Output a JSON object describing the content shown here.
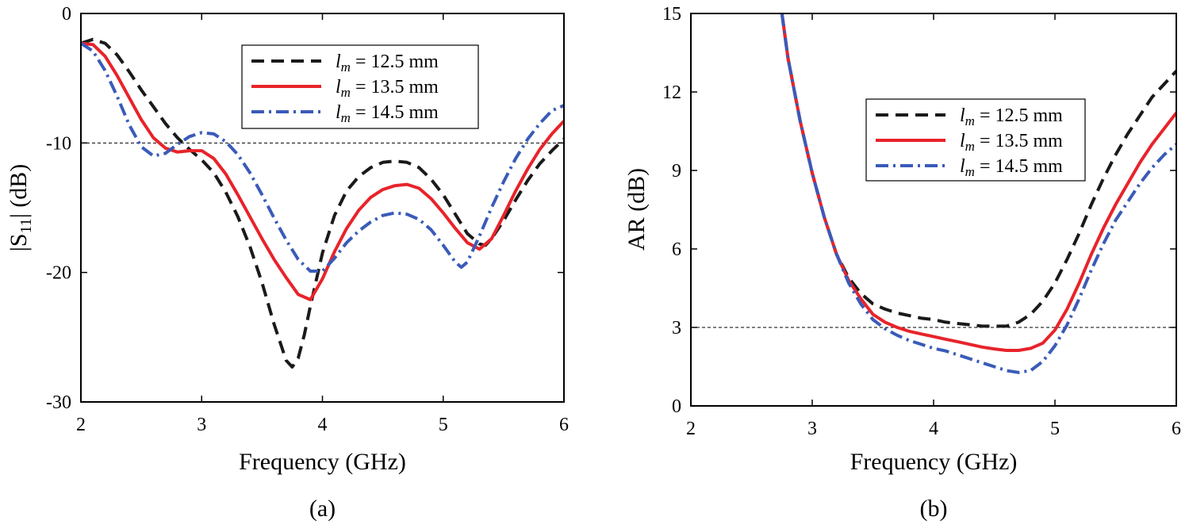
{
  "chart_data": [
    {
      "type": "line",
      "panel_label": "(a)",
      "xlabel": "Frequency (GHz)",
      "ylabel": "|S11| (dB)",
      "ylabel_main": "|S",
      "ylabel_sub": "11",
      "ylabel_tail": "| (dB)",
      "xlim": [
        2,
        6
      ],
      "ylim": [
        -30,
        0
      ],
      "xticks": [
        2,
        3,
        4,
        5,
        6
      ],
      "yticks": [
        0,
        -10,
        -20,
        -30
      ],
      "xtick_labels": [
        "2",
        "3",
        "4",
        "5",
        "6"
      ],
      "ytick_labels": [
        "0",
        "-10",
        "-20",
        "-30"
      ],
      "reference_line": -10,
      "legend_position": "top-right",
      "series": [
        {
          "name": "l_m = 12.5 mm",
          "legend_var": "l",
          "legend_sub": "m",
          "legend_rest": " = 12.5 mm",
          "color": "#1a1a1a",
          "dash": "dashed",
          "x": [
            2.0,
            2.1,
            2.2,
            2.3,
            2.4,
            2.5,
            2.6,
            2.7,
            2.8,
            2.9,
            3.0,
            3.1,
            3.2,
            3.3,
            3.4,
            3.5,
            3.6,
            3.7,
            3.75,
            3.8,
            3.85,
            3.9,
            4.0,
            4.1,
            4.2,
            4.3,
            4.4,
            4.5,
            4.6,
            4.7,
            4.8,
            4.9,
            5.0,
            5.1,
            5.2,
            5.3,
            5.35,
            5.4,
            5.5,
            5.6,
            5.7,
            5.8,
            5.9,
            6.0
          ],
          "y": [
            -2.3,
            -2.0,
            -2.3,
            -3.2,
            -4.5,
            -5.9,
            -7.2,
            -8.5,
            -9.6,
            -10.5,
            -11.3,
            -12.3,
            -13.8,
            -15.7,
            -18.0,
            -20.8,
            -24.0,
            -26.8,
            -27.3,
            -26.6,
            -24.8,
            -22.6,
            -18.5,
            -15.6,
            -13.7,
            -12.6,
            -11.9,
            -11.5,
            -11.4,
            -11.5,
            -11.9,
            -12.8,
            -14.0,
            -15.5,
            -17.0,
            -17.8,
            -17.9,
            -17.4,
            -16.0,
            -14.4,
            -12.9,
            -11.6,
            -10.6,
            -9.7
          ]
        },
        {
          "name": "l_m = 13.5 mm",
          "legend_var": "l",
          "legend_sub": "m",
          "legend_rest": " = 13.5 mm",
          "color": "#e8232a",
          "dash": "solid",
          "x": [
            2.0,
            2.1,
            2.2,
            2.3,
            2.4,
            2.5,
            2.6,
            2.7,
            2.8,
            2.9,
            3.0,
            3.1,
            3.2,
            3.3,
            3.4,
            3.5,
            3.6,
            3.7,
            3.8,
            3.9,
            4.0,
            4.1,
            4.2,
            4.3,
            4.4,
            4.5,
            4.6,
            4.7,
            4.8,
            4.9,
            5.0,
            5.1,
            5.2,
            5.3,
            5.4,
            5.5,
            5.6,
            5.7,
            5.8,
            5.9,
            6.0
          ],
          "y": [
            -2.3,
            -2.4,
            -3.3,
            -4.8,
            -6.5,
            -8.2,
            -9.6,
            -10.4,
            -10.7,
            -10.6,
            -10.6,
            -11.2,
            -12.4,
            -14.0,
            -15.7,
            -17.4,
            -19.0,
            -20.4,
            -21.7,
            -22.1,
            -20.5,
            -18.4,
            -16.6,
            -15.2,
            -14.2,
            -13.6,
            -13.3,
            -13.2,
            -13.5,
            -14.3,
            -15.4,
            -16.6,
            -17.7,
            -18.2,
            -17.4,
            -15.6,
            -13.7,
            -12.0,
            -10.5,
            -9.3,
            -8.3
          ]
        },
        {
          "name": "l_m = 14.5 mm",
          "legend_var": "l",
          "legend_sub": "m",
          "legend_rest": " = 14.5 mm",
          "color": "#3a5bb8",
          "dash": "dashdot",
          "x": [
            2.0,
            2.1,
            2.2,
            2.3,
            2.4,
            2.5,
            2.6,
            2.7,
            2.8,
            2.9,
            3.0,
            3.1,
            3.2,
            3.3,
            3.4,
            3.5,
            3.6,
            3.7,
            3.8,
            3.9,
            4.0,
            4.1,
            4.2,
            4.3,
            4.4,
            4.5,
            4.6,
            4.7,
            4.8,
            4.9,
            5.0,
            5.1,
            5.15,
            5.2,
            5.3,
            5.4,
            5.5,
            5.6,
            5.7,
            5.8,
            5.9,
            6.0
          ],
          "y": [
            -2.3,
            -2.9,
            -4.4,
            -6.4,
            -8.6,
            -10.3,
            -11.0,
            -10.8,
            -10.1,
            -9.5,
            -9.2,
            -9.3,
            -9.9,
            -10.9,
            -12.3,
            -14.0,
            -15.8,
            -17.5,
            -19.0,
            -19.9,
            -19.9,
            -18.9,
            -17.7,
            -16.8,
            -16.1,
            -15.6,
            -15.4,
            -15.5,
            -15.9,
            -16.7,
            -17.9,
            -19.2,
            -19.6,
            -19.2,
            -17.2,
            -15.0,
            -13.0,
            -11.2,
            -9.7,
            -8.5,
            -7.5,
            -7.1
          ]
        }
      ]
    },
    {
      "type": "line",
      "panel_label": "(b)",
      "xlabel": "Frequency (GHz)",
      "ylabel": "AR (dB)",
      "xlim": [
        2,
        6
      ],
      "ylim": [
        0,
        15
      ],
      "xticks": [
        2,
        3,
        4,
        5,
        6
      ],
      "yticks": [
        0,
        3,
        6,
        9,
        12,
        15
      ],
      "xtick_labels": [
        "2",
        "3",
        "4",
        "5",
        "6"
      ],
      "ytick_labels": [
        "0",
        "3",
        "6",
        "9",
        "12",
        "15"
      ],
      "reference_line": 3,
      "legend_position": "upper-center",
      "series": [
        {
          "name": "l_m = 12.5 mm",
          "legend_var": "l",
          "legend_sub": "m",
          "legend_rest": " = 12.5 mm",
          "color": "#1a1a1a",
          "dash": "dashed",
          "x": [
            2.75,
            2.8,
            2.9,
            3.0,
            3.1,
            3.2,
            3.3,
            3.4,
            3.5,
            3.6,
            3.7,
            3.8,
            3.9,
            4.0,
            4.1,
            4.2,
            4.3,
            4.4,
            4.5,
            4.6,
            4.7,
            4.8,
            4.9,
            5.0,
            5.1,
            5.2,
            5.3,
            5.4,
            5.5,
            5.6,
            5.7,
            5.8,
            5.9,
            6.0
          ],
          "y": [
            15.0,
            13.3,
            10.9,
            8.9,
            7.2,
            5.8,
            4.9,
            4.3,
            3.9,
            3.7,
            3.55,
            3.45,
            3.35,
            3.3,
            3.2,
            3.15,
            3.1,
            3.05,
            3.05,
            3.05,
            3.2,
            3.5,
            4.0,
            4.7,
            5.6,
            6.6,
            7.7,
            8.7,
            9.6,
            10.4,
            11.1,
            11.8,
            12.3,
            12.8
          ]
        },
        {
          "name": "l_m = 13.5 mm",
          "legend_var": "l",
          "legend_sub": "m",
          "legend_rest": " = 13.5 mm",
          "color": "#e8232a",
          "dash": "solid",
          "x": [
            2.75,
            2.8,
            2.9,
            3.0,
            3.1,
            3.2,
            3.3,
            3.4,
            3.5,
            3.6,
            3.7,
            3.8,
            3.9,
            4.0,
            4.1,
            4.2,
            4.3,
            4.4,
            4.5,
            4.6,
            4.7,
            4.8,
            4.9,
            5.0,
            5.1,
            5.2,
            5.3,
            5.4,
            5.5,
            5.6,
            5.7,
            5.8,
            5.9,
            6.0
          ],
          "y": [
            15.0,
            13.3,
            10.9,
            8.9,
            7.2,
            5.8,
            4.8,
            4.1,
            3.5,
            3.2,
            3.0,
            2.85,
            2.75,
            2.65,
            2.55,
            2.45,
            2.35,
            2.25,
            2.18,
            2.12,
            2.12,
            2.2,
            2.4,
            2.9,
            3.7,
            4.7,
            5.8,
            6.8,
            7.7,
            8.5,
            9.3,
            10.0,
            10.6,
            11.2
          ]
        },
        {
          "name": "l_m = 14.5 mm",
          "legend_var": "l",
          "legend_sub": "m",
          "legend_rest": " = 14.5 mm",
          "color": "#3a5bb8",
          "dash": "dashdot",
          "x": [
            2.75,
            2.8,
            2.9,
            3.0,
            3.1,
            3.2,
            3.3,
            3.4,
            3.5,
            3.6,
            3.7,
            3.8,
            3.9,
            4.0,
            4.1,
            4.2,
            4.3,
            4.4,
            4.5,
            4.6,
            4.7,
            4.8,
            4.9,
            5.0,
            5.1,
            5.2,
            5.3,
            5.4,
            5.5,
            5.6,
            5.7,
            5.8,
            5.9,
            6.0
          ],
          "y": [
            15.0,
            13.3,
            10.9,
            8.9,
            7.2,
            5.8,
            4.7,
            3.9,
            3.3,
            2.95,
            2.7,
            2.5,
            2.35,
            2.2,
            2.1,
            1.95,
            1.8,
            1.65,
            1.5,
            1.35,
            1.28,
            1.35,
            1.7,
            2.3,
            3.1,
            4.1,
            5.2,
            6.2,
            7.1,
            7.8,
            8.5,
            9.1,
            9.6,
            10.0
          ]
        }
      ]
    }
  ]
}
